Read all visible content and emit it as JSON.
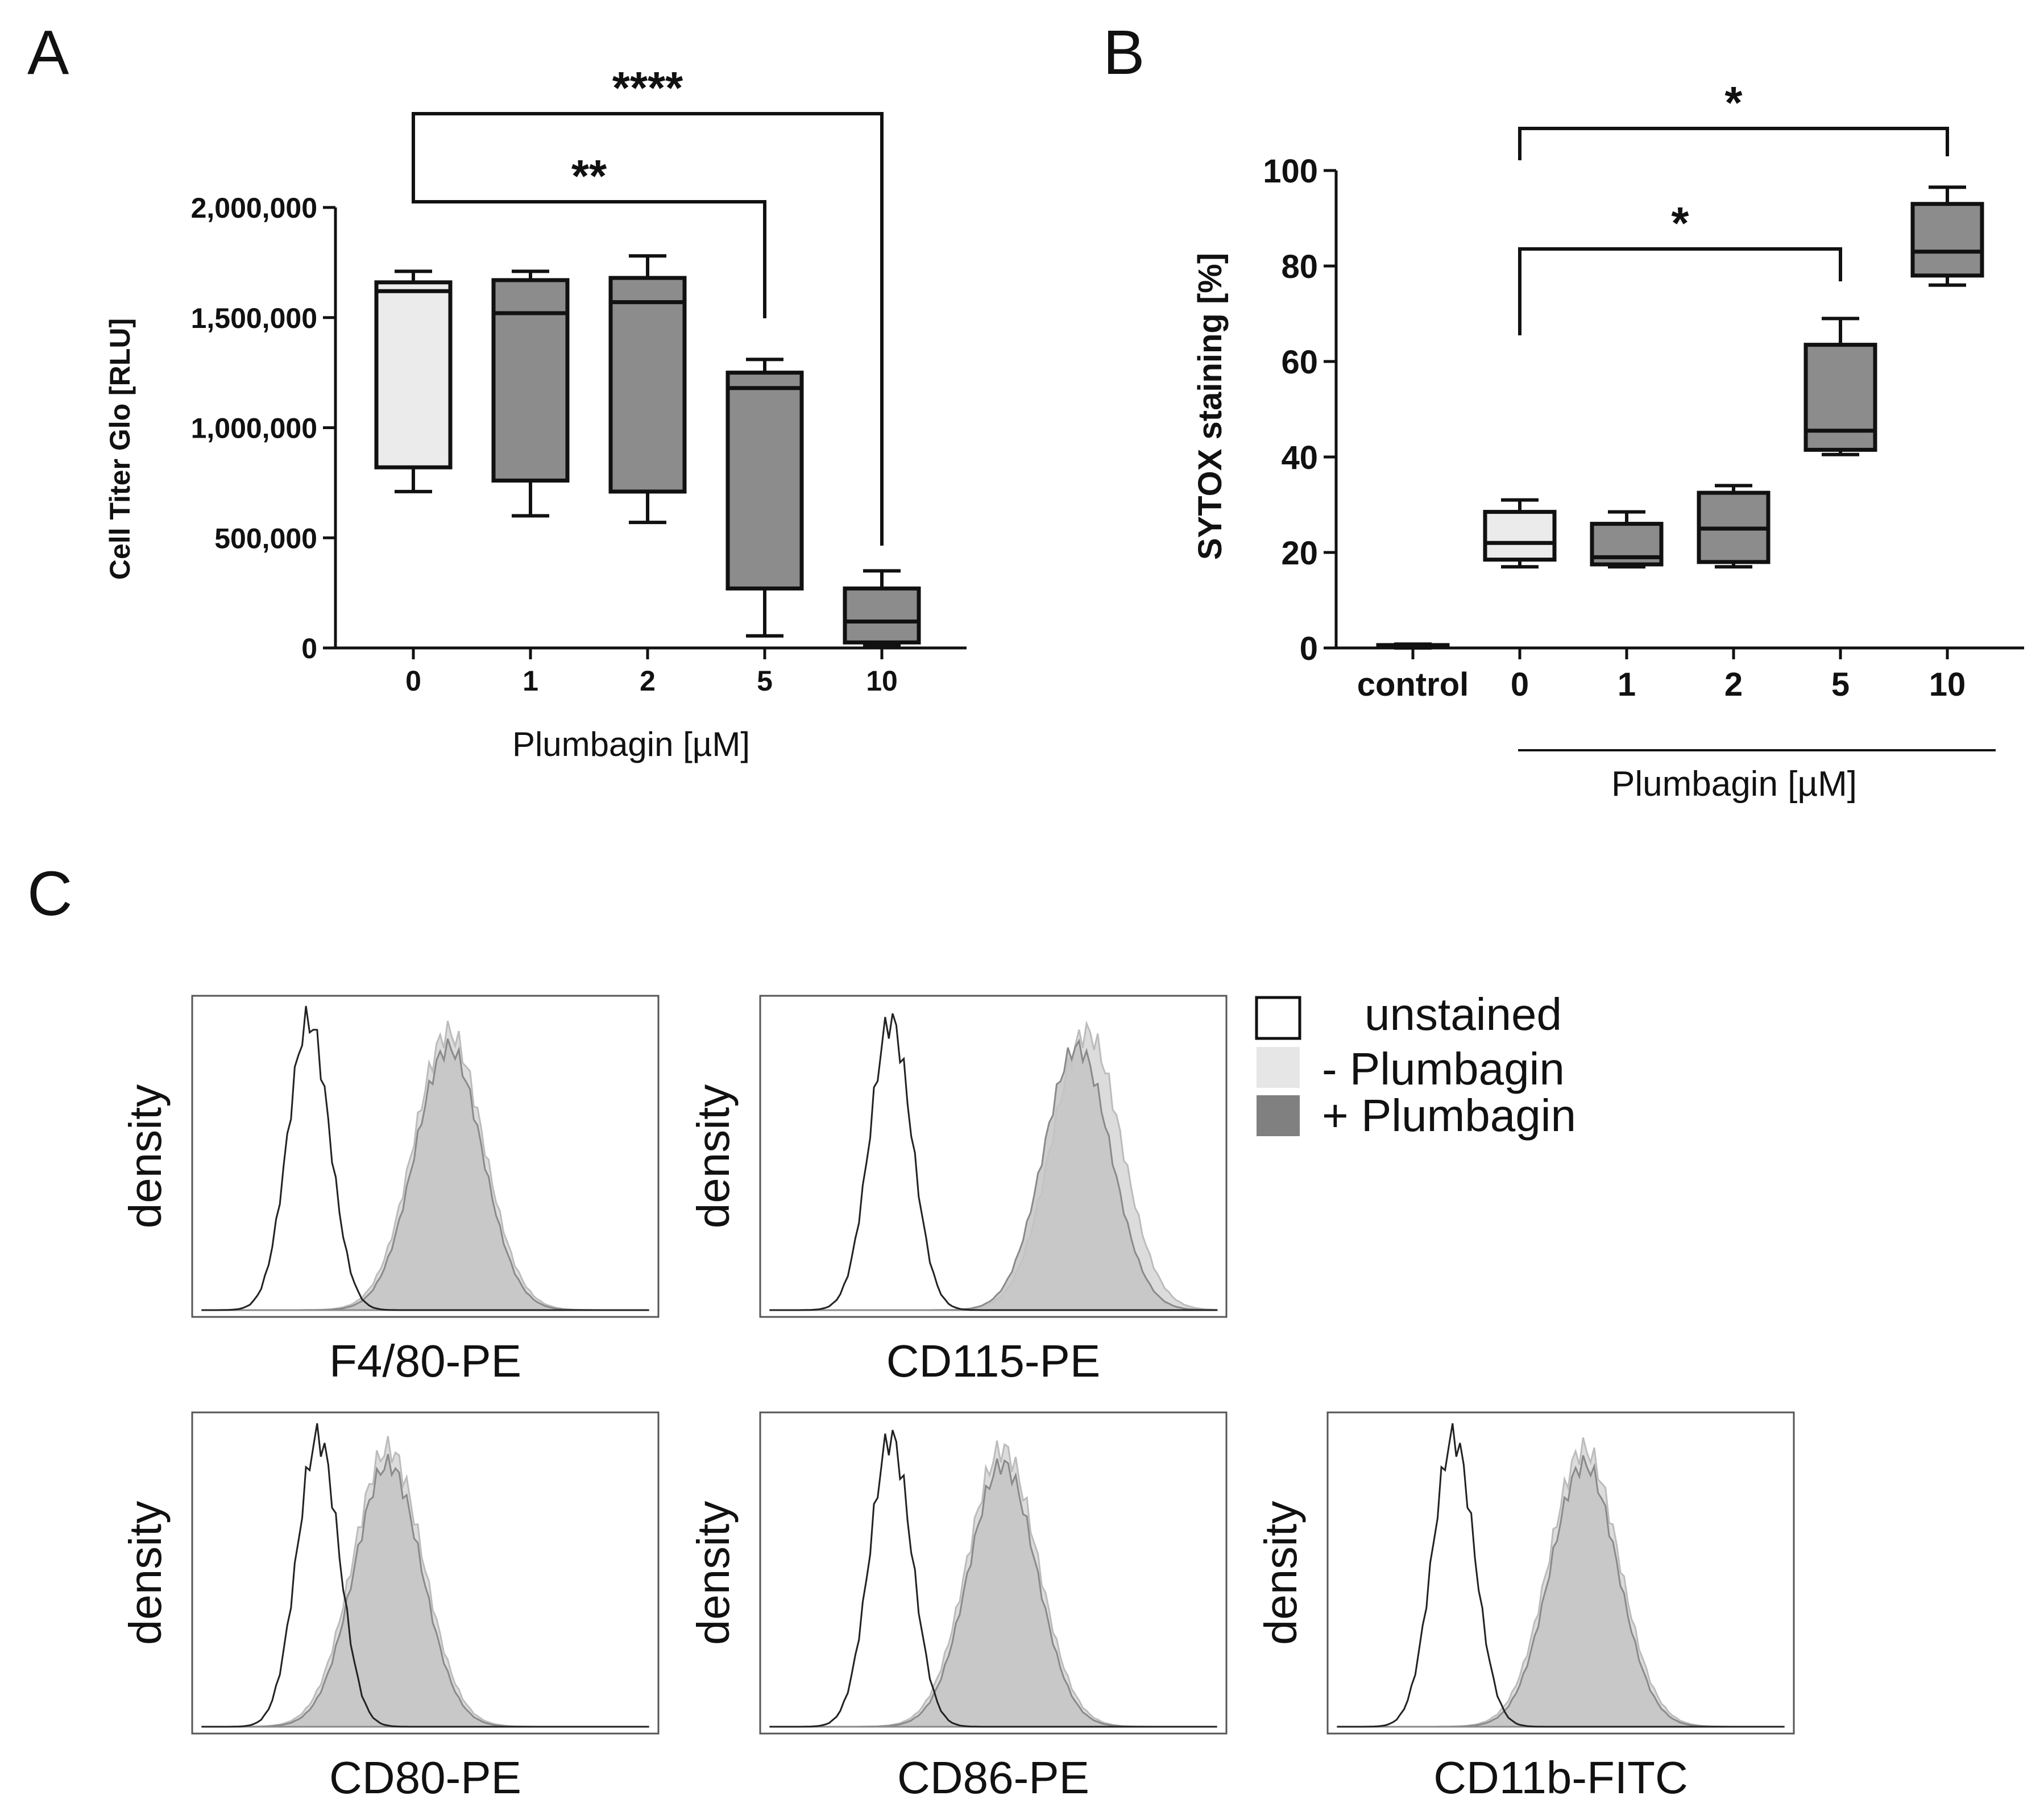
{
  "panels": {
    "a": {
      "letter": "A"
    },
    "b": {
      "letter": "B"
    },
    "c": {
      "letter": "C"
    }
  },
  "chart_data": [
    {
      "panel": "A",
      "type": "box",
      "title": "",
      "xlabel": "Plumbagin [µM]",
      "ylabel": "Cell Titer Glo [RLU]",
      "ylim": [
        0,
        2000000
      ],
      "yticks": [
        0,
        500000,
        1000000,
        1500000,
        2000000
      ],
      "ytick_labels": [
        "0",
        "500,000",
        "1,000,000",
        "1,500,000",
        "2,000,000"
      ],
      "categories": [
        "0",
        "1",
        "2",
        "5",
        "10"
      ],
      "boxes": [
        {
          "category": "0",
          "min": 710000,
          "q1": 820000,
          "median": 1620000,
          "q3": 1660000,
          "max": 1710000,
          "fill": "#ebebeb"
        },
        {
          "category": "1",
          "min": 600000,
          "q1": 760000,
          "median": 1520000,
          "q3": 1670000,
          "max": 1710000,
          "fill": "#8c8c8c"
        },
        {
          "category": "2",
          "min": 570000,
          "q1": 710000,
          "median": 1570000,
          "q3": 1680000,
          "max": 1780000,
          "fill": "#8c8c8c"
        },
        {
          "category": "5",
          "min": 55000,
          "q1": 270000,
          "median": 1180000,
          "q3": 1250000,
          "max": 1310000,
          "fill": "#8c8c8c"
        },
        {
          "category": "10",
          "min": 10000,
          "q1": 25000,
          "median": 120000,
          "q3": 270000,
          "max": 350000,
          "fill": "#8c8c8c"
        }
      ],
      "significance": [
        {
          "from": "0",
          "to": "5",
          "label": "**"
        },
        {
          "from": "0",
          "to": "10",
          "label": "****"
        }
      ]
    },
    {
      "panel": "B",
      "type": "box",
      "title": "",
      "xlabel": "Plumbagin [µM]",
      "ylabel": "SYTOX staining [%]",
      "ylim": [
        0,
        100
      ],
      "yticks": [
        0,
        20,
        40,
        60,
        80,
        100
      ],
      "ytick_labels": [
        "0",
        "20",
        "40",
        "60",
        "80",
        "100"
      ],
      "categories": [
        "control",
        "0",
        "1",
        "2",
        "5",
        "10"
      ],
      "boxes": [
        {
          "category": "control",
          "min": 0,
          "q1": 0.2,
          "median": 0.4,
          "q3": 0.6,
          "max": 0.8,
          "fill": "#8c8c8c"
        },
        {
          "category": "0",
          "min": 17,
          "q1": 18.5,
          "median": 22,
          "q3": 28.5,
          "max": 31,
          "fill": "#ebebeb"
        },
        {
          "category": "1",
          "min": 17,
          "q1": 17.5,
          "median": 19,
          "q3": 26,
          "max": 28.5,
          "fill": "#8c8c8c"
        },
        {
          "category": "2",
          "min": 17,
          "q1": 18,
          "median": 25,
          "q3": 32.5,
          "max": 34,
          "fill": "#8c8c8c"
        },
        {
          "category": "5",
          "min": 40.5,
          "q1": 41.5,
          "median": 45.5,
          "q3": 63.5,
          "max": 69,
          "fill": "#8c8c8c"
        },
        {
          "category": "10",
          "min": 76,
          "q1": 78,
          "median": 83,
          "q3": 93,
          "max": 96.5,
          "fill": "#8c8c8c"
        }
      ],
      "significance": [
        {
          "from": "0",
          "to": "5",
          "label": "*"
        },
        {
          "from": "0",
          "to": "10",
          "label": "*"
        }
      ]
    },
    {
      "panel": "C",
      "type": "histogram-overlay",
      "ylabel": "density",
      "legend": [
        {
          "label": "unstained",
          "swatch": "#ffffff"
        },
        {
          "label": "-  Plumbagin",
          "swatch": "#e6e6e6"
        },
        {
          "label": "+ Plumbagin",
          "swatch": "#808080"
        }
      ],
      "legend_position": "top-right",
      "histograms": [
        {
          "marker": "F4/80-PE",
          "unstained_peak": 0.25,
          "minus_peak": 0.55,
          "plus_peak": 0.55
        },
        {
          "marker": "CD115-PE",
          "unstained_peak": 0.28,
          "minus_peak": 0.7,
          "plus_peak": 0.68
        },
        {
          "marker": "CD80-PE",
          "unstained_peak": 0.27,
          "minus_peak": 0.42,
          "plus_peak": 0.42
        },
        {
          "marker": "CD86-PE",
          "unstained_peak": 0.28,
          "minus_peak": 0.52,
          "plus_peak": 0.52
        },
        {
          "marker": "CD11b-FITC",
          "unstained_peak": 0.27,
          "minus_peak": 0.55,
          "plus_peak": 0.55
        }
      ]
    }
  ]
}
